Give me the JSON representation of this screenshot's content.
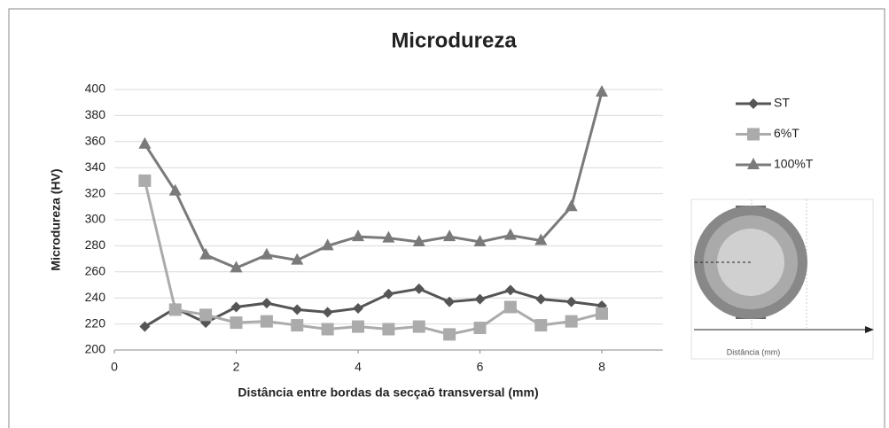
{
  "chart_data": {
    "type": "line",
    "title": "Microdureza",
    "x_label": "Distância entre bordas da secçaõ transversal (mm)",
    "y_label": "Microdureza (HV)",
    "x": [
      0.5,
      1,
      1.5,
      2,
      2.5,
      3,
      3.5,
      4,
      4.5,
      5,
      5.5,
      6,
      6.5,
      7,
      7.5,
      8
    ],
    "series": [
      {
        "name": "ST",
        "color": "#555555",
        "marker": "diamond",
        "values": [
          218,
          232,
          221,
          233,
          236,
          231,
          229,
          232,
          243,
          247,
          237,
          239,
          246,
          239,
          237,
          234
        ]
      },
      {
        "name": "6%T",
        "color": "#ababab",
        "marker": "square",
        "values": [
          330,
          231,
          227,
          221,
          222,
          219,
          216,
          218,
          216,
          218,
          212,
          217,
          233,
          219,
          222,
          228
        ]
      },
      {
        "name": "100%T",
        "color": "#7a7a7a",
        "marker": "triangle",
        "values": [
          358,
          322,
          273,
          263,
          273,
          269,
          280,
          287,
          286,
          283,
          287,
          283,
          288,
          284,
          310,
          398
        ]
      }
    ],
    "xlim": [
      0,
      9
    ],
    "xticks": [
      0,
      2,
      4,
      6,
      8
    ],
    "ylim": [
      200,
      400
    ],
    "yticks": [
      200,
      220,
      240,
      260,
      280,
      300,
      320,
      340,
      360,
      380,
      400
    ],
    "grid": true,
    "legend": "right",
    "inset_label": "Distância (mm)"
  }
}
